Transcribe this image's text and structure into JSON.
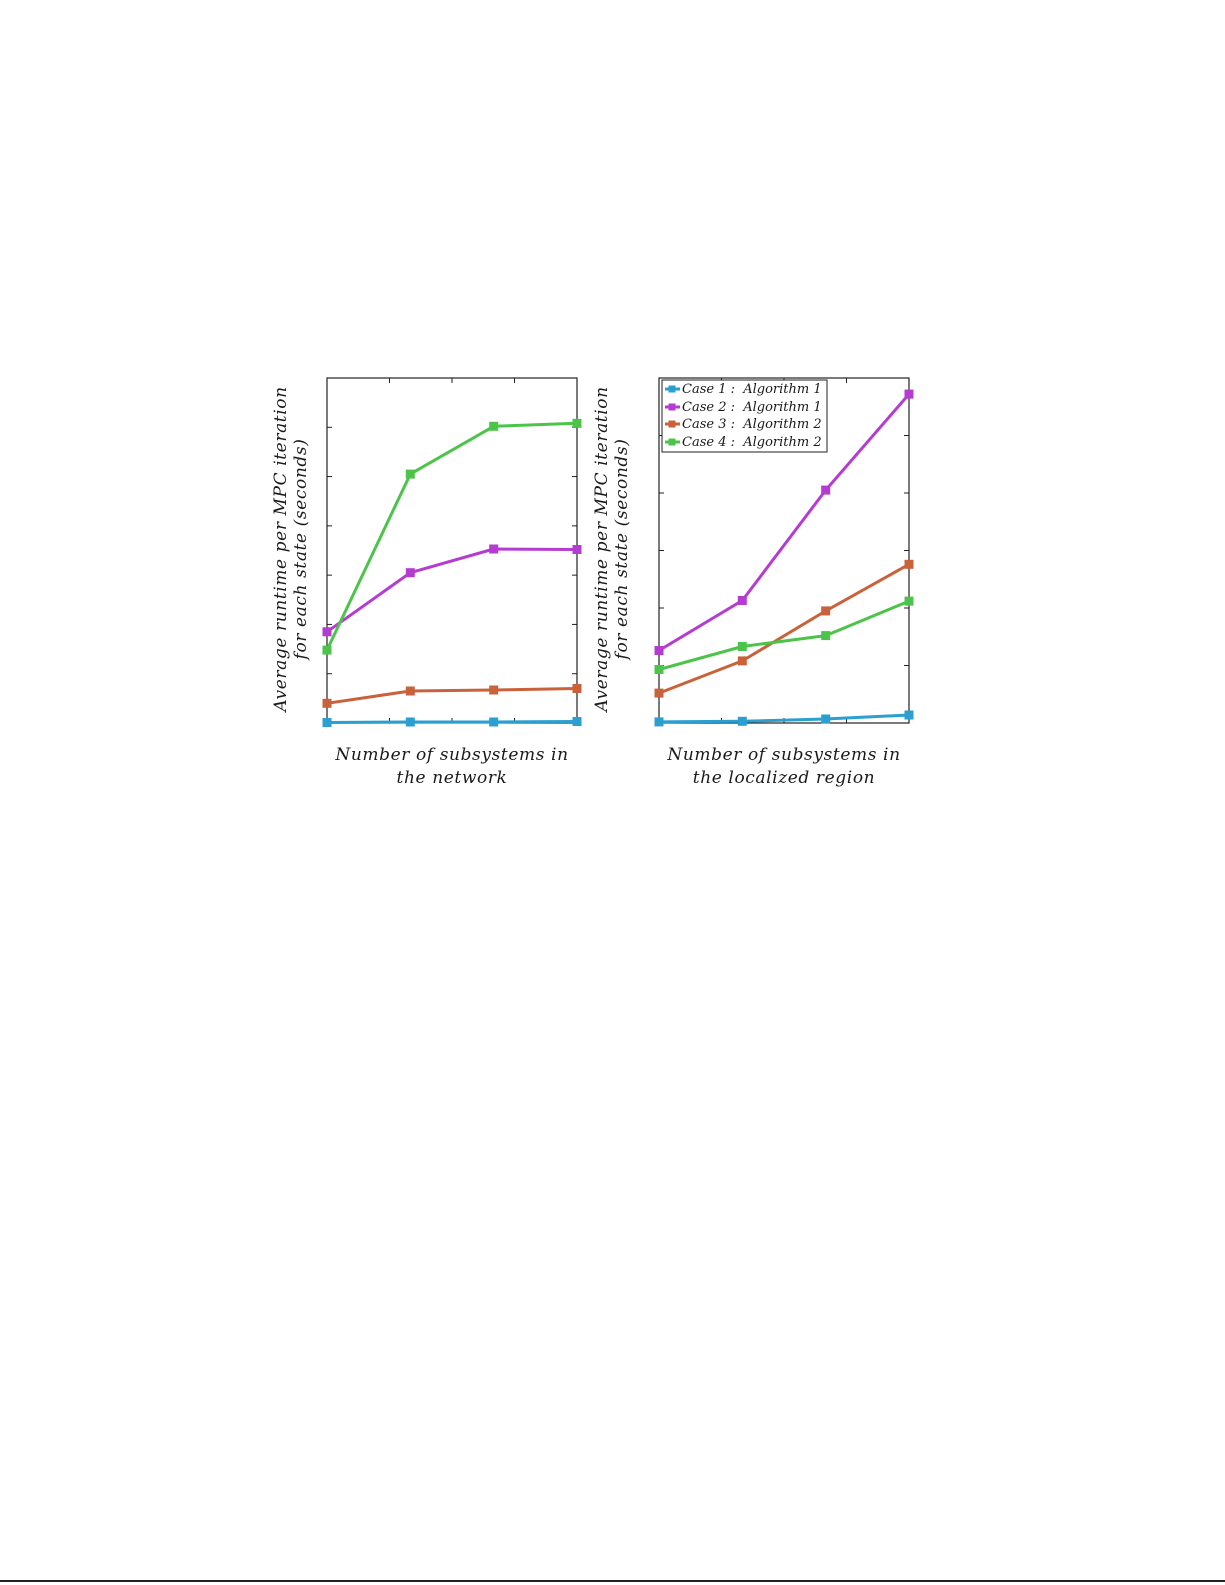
{
  "chart_data": [
    {
      "type": "line",
      "ylabel_lines": [
        "Average runtime per MPC iteration",
        "for each state (seconds)"
      ],
      "xlabel_lines": [
        "Number of subsystems in",
        "the network"
      ],
      "x": [
        1,
        2,
        3,
        4
      ],
      "ylim": [
        0,
        7
      ],
      "grid": false,
      "tick_labels_shown": false,
      "legend": "none",
      "series": [
        {
          "name": "",
          "color": "#2a9fd0",
          "values": [
            0.01,
            0.02,
            0.02,
            0.03
          ]
        },
        {
          "name": "",
          "color": "#b53cd0",
          "values": [
            1.85,
            3.05,
            3.53,
            3.52
          ]
        },
        {
          "name": "",
          "color": "#c9623a",
          "values": [
            0.4,
            0.65,
            0.67,
            0.7
          ]
        },
        {
          "name": "",
          "color": "#4cc44a",
          "values": [
            1.48,
            5.05,
            6.02,
            6.08
          ]
        }
      ]
    },
    {
      "type": "line",
      "ylabel_lines": [
        "Average runtime per MPC iteration",
        "for each state (seconds)"
      ],
      "xlabel_lines": [
        "Number of subsystems in",
        "the localized region"
      ],
      "x": [
        1,
        2,
        3,
        4
      ],
      "ylim": [
        0,
        6
      ],
      "grid": false,
      "tick_labels_shown": false,
      "legend": "top-left",
      "series": [
        {
          "name": "Case 1 :  Algorithm 1",
          "color": "#2a9fd0",
          "values": [
            0.02,
            0.03,
            0.07,
            0.14
          ]
        },
        {
          "name": "Case 2 :  Algorithm 1",
          "color": "#b53cd0",
          "values": [
            1.26,
            2.13,
            4.05,
            5.72
          ]
        },
        {
          "name": "Case 3 :  Algorithm 2",
          "color": "#c9623a",
          "values": [
            0.52,
            1.08,
            1.95,
            2.76
          ]
        },
        {
          "name": "Case 4 :  Algorithm 2",
          "color": "#4cc44a",
          "values": [
            0.93,
            1.33,
            1.52,
            2.12
          ]
        }
      ]
    }
  ]
}
